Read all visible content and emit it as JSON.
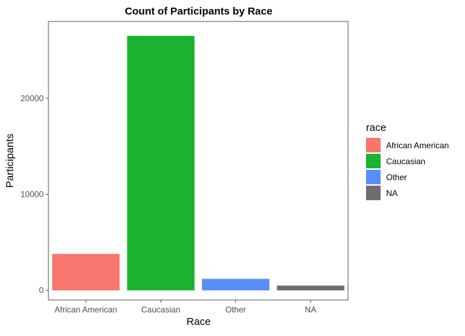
{
  "chart_data": {
    "type": "bar",
    "title": "Count of Participants by Race",
    "xlabel": "Race",
    "ylabel": "Participants",
    "categories": [
      "African American",
      "Caucasian",
      "Other",
      "NA"
    ],
    "values": [
      3800,
      26500,
      1200,
      500
    ],
    "colors": [
      "#F8766D",
      "#1AB22F",
      "#5A8DF8",
      "#6E6E6E"
    ],
    "ylim": [
      -1000,
      28000
    ],
    "yticks": [
      0,
      10000,
      20000
    ],
    "ytick_labels": [
      "0",
      "10000",
      "20000"
    ],
    "grid": false,
    "legend": {
      "title": "race",
      "position": "right",
      "entries": [
        "African American",
        "Caucasian",
        "Other",
        "NA"
      ]
    }
  }
}
